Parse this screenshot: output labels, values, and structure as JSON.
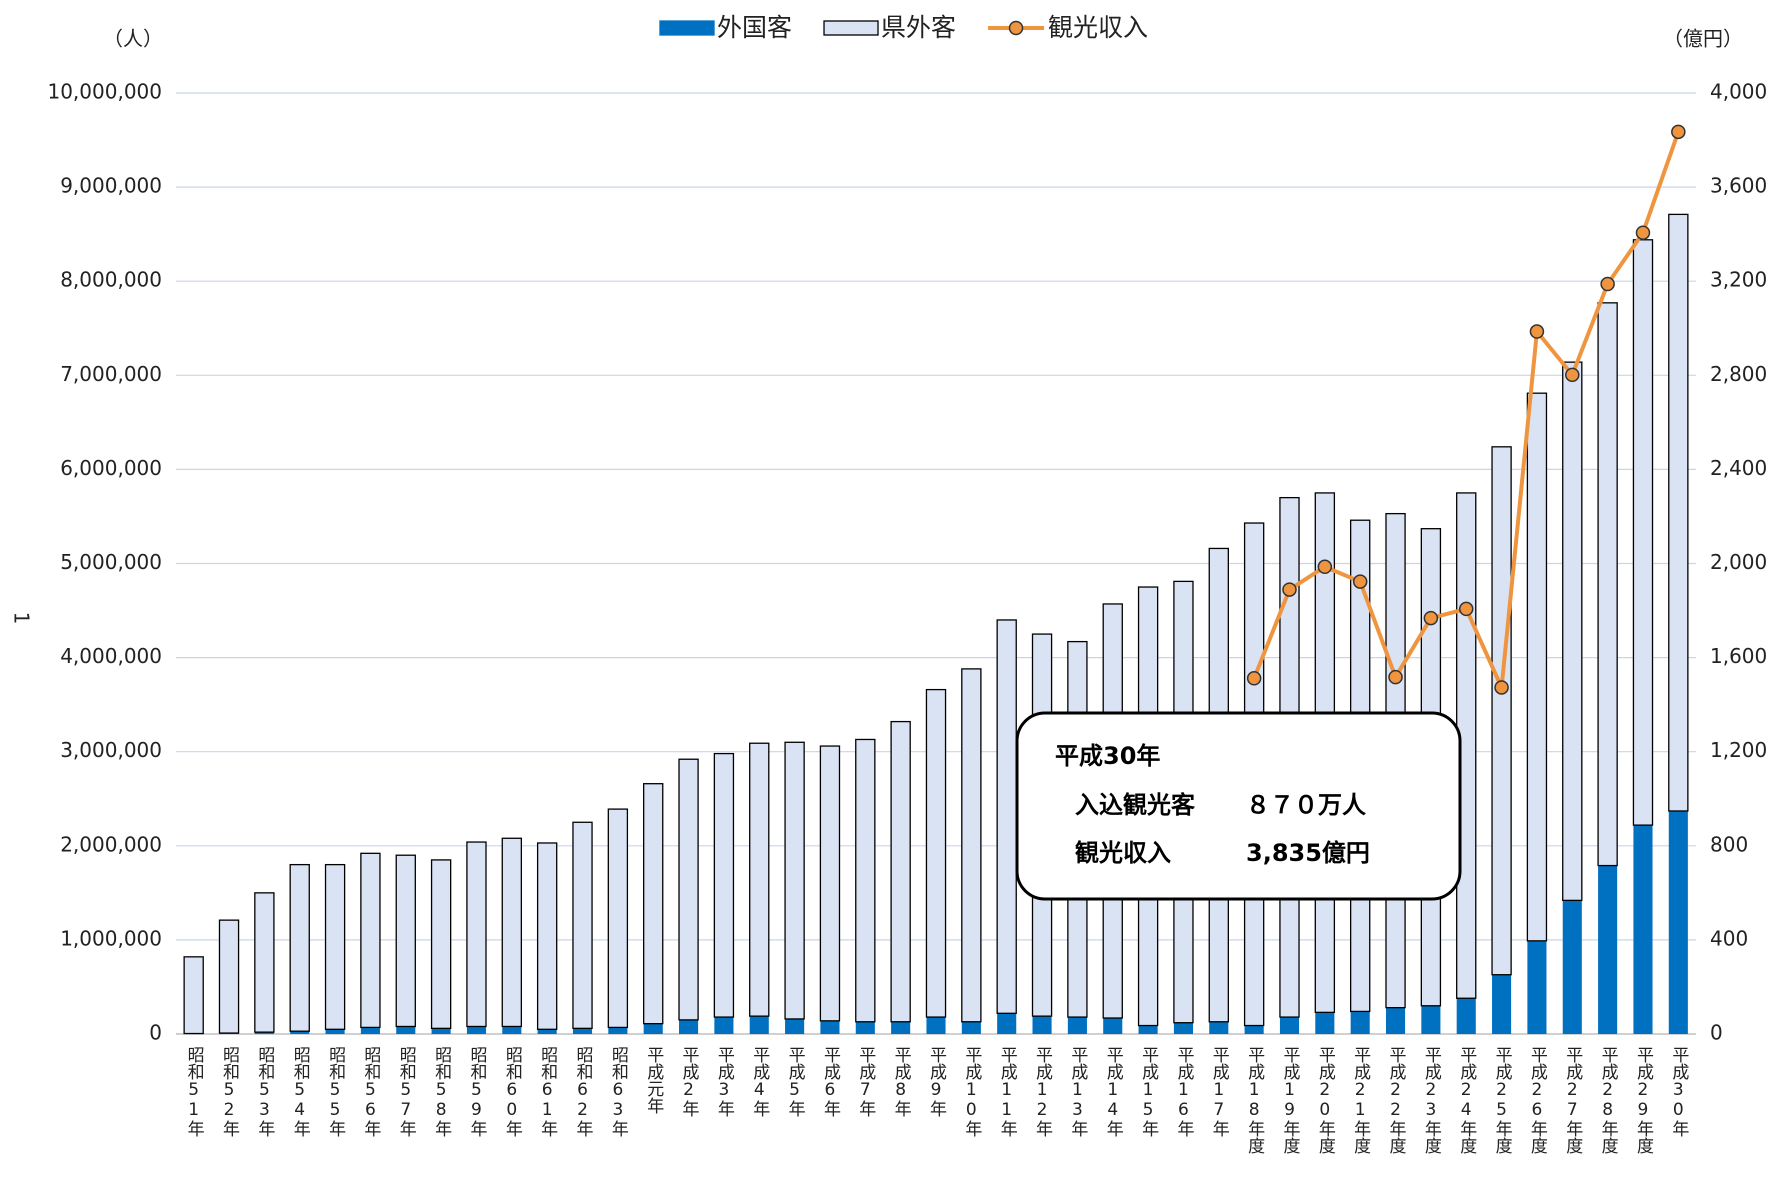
{
  "chart_data": {
    "type": "stacked-bar-line",
    "ylabel": "1",
    "y_unit": "（人）",
    "y2_unit": "（億円）",
    "categories": [
      "昭和51年",
      "昭和52年",
      "昭和53年",
      "昭和54年",
      "昭和55年",
      "昭和56年",
      "昭和57年",
      "昭和58年",
      "昭和59年",
      "昭和60年",
      "昭和61年",
      "昭和62年",
      "昭和63年",
      "平成元年",
      "平成2年",
      "平成3年",
      "平成4年",
      "平成5年",
      "平成6年",
      "平成7年",
      "平成8年",
      "平成9年",
      "平成10年",
      "平成11年",
      "平成12年",
      "平成13年",
      "平成14年",
      "平成15年",
      "平成16年",
      "平成17年",
      "平成18年度",
      "平成19年度",
      "平成20年度",
      "平成21年度",
      "平成22年度",
      "平成23年度",
      "平成24年度",
      "平成25年度",
      "平成26年度",
      "平成27年度",
      "平成28年度",
      "平成29年度",
      "平成30年"
    ],
    "series": [
      {
        "name": "外国客",
        "color": "#0070c0",
        "values": [
          5000,
          10000,
          20000,
          30000,
          50000,
          70000,
          80000,
          60000,
          80000,
          80000,
          50000,
          60000,
          70000,
          110000,
          150000,
          180000,
          190000,
          160000,
          140000,
          130000,
          130000,
          180000,
          130000,
          220000,
          190000,
          180000,
          170000,
          90000,
          120000,
          130000,
          90000,
          180000,
          230000,
          240000,
          280000,
          300000,
          380000,
          630000,
          990000,
          1420000,
          1790000,
          2220000,
          2370000
        ]
      },
      {
        "name": "県外客",
        "color": "#dae3f3",
        "values": [
          815000,
          1200000,
          1480000,
          1770000,
          1750000,
          1850000,
          1820000,
          1790000,
          1960000,
          2000000,
          1980000,
          2190000,
          2320000,
          2550000,
          2770000,
          2800000,
          2900000,
          2940000,
          2920000,
          3000000,
          3190000,
          3480000,
          3750000,
          4180000,
          4060000,
          3990000,
          4400000,
          4660000,
          4690000,
          5030000,
          5340000,
          5520000,
          5520000,
          5220000,
          5250000,
          5070000,
          5370000,
          5610000,
          5820000,
          5720000,
          5980000,
          6220000,
          6340000
        ]
      },
      {
        "name": "観光収入",
        "color": "#f0953f",
        "axis": "y2",
        "type": "line",
        "values": [
          null,
          null,
          null,
          null,
          null,
          null,
          null,
          null,
          null,
          null,
          null,
          null,
          null,
          null,
          null,
          null,
          null,
          null,
          null,
          null,
          null,
          null,
          null,
          null,
          null,
          null,
          null,
          null,
          null,
          null,
          1512,
          1889,
          1986,
          1923,
          1517,
          1768,
          1807,
          1473,
          2986,
          2802,
          3188,
          3406,
          3835
        ]
      }
    ],
    "ylim": [
      0,
      10000000
    ],
    "yticks": [
      0,
      {
        "value": 1000000,
        "label": "1,000,000"
      },
      {
        "value": 2000000,
        "label": "2,000,000"
      },
      {
        "value": 3000000,
        "label": "3,000,000"
      },
      {
        "value": 4000000,
        "label": "4,000,000"
      },
      {
        "value": 5000000,
        "label": "5,000,000"
      },
      {
        "value": 6000000,
        "label": "6,000,000"
      },
      {
        "value": 7000000,
        "label": "7,000,000"
      },
      {
        "value": 8000000,
        "label": "8,000,000"
      },
      {
        "value": 9000000,
        "label": "9,000,000"
      },
      {
        "value": 10000000,
        "label": "10,000,000"
      }
    ],
    "y2lim": [
      0,
      4000
    ],
    "y2ticks": [
      0,
      400,
      800,
      {
        "value": 1200,
        "label": "1,200"
      },
      {
        "value": 1600,
        "label": "1,600"
      },
      {
        "value": 2000,
        "label": "2,000"
      },
      {
        "value": 2400,
        "label": "2,400"
      },
      {
        "value": 2800,
        "label": "2,800"
      },
      {
        "value": 3200,
        "label": "3,200"
      },
      {
        "value": 3600,
        "label": "3,600"
      },
      {
        "value": 4000,
        "label": "4,000"
      }
    ],
    "grid": true,
    "annotation": {
      "title": "平成30年",
      "lines": [
        [
          "入込観光客",
          "８７０万人"
        ],
        [
          "観光収入",
          "3,835億円"
        ]
      ]
    }
  }
}
